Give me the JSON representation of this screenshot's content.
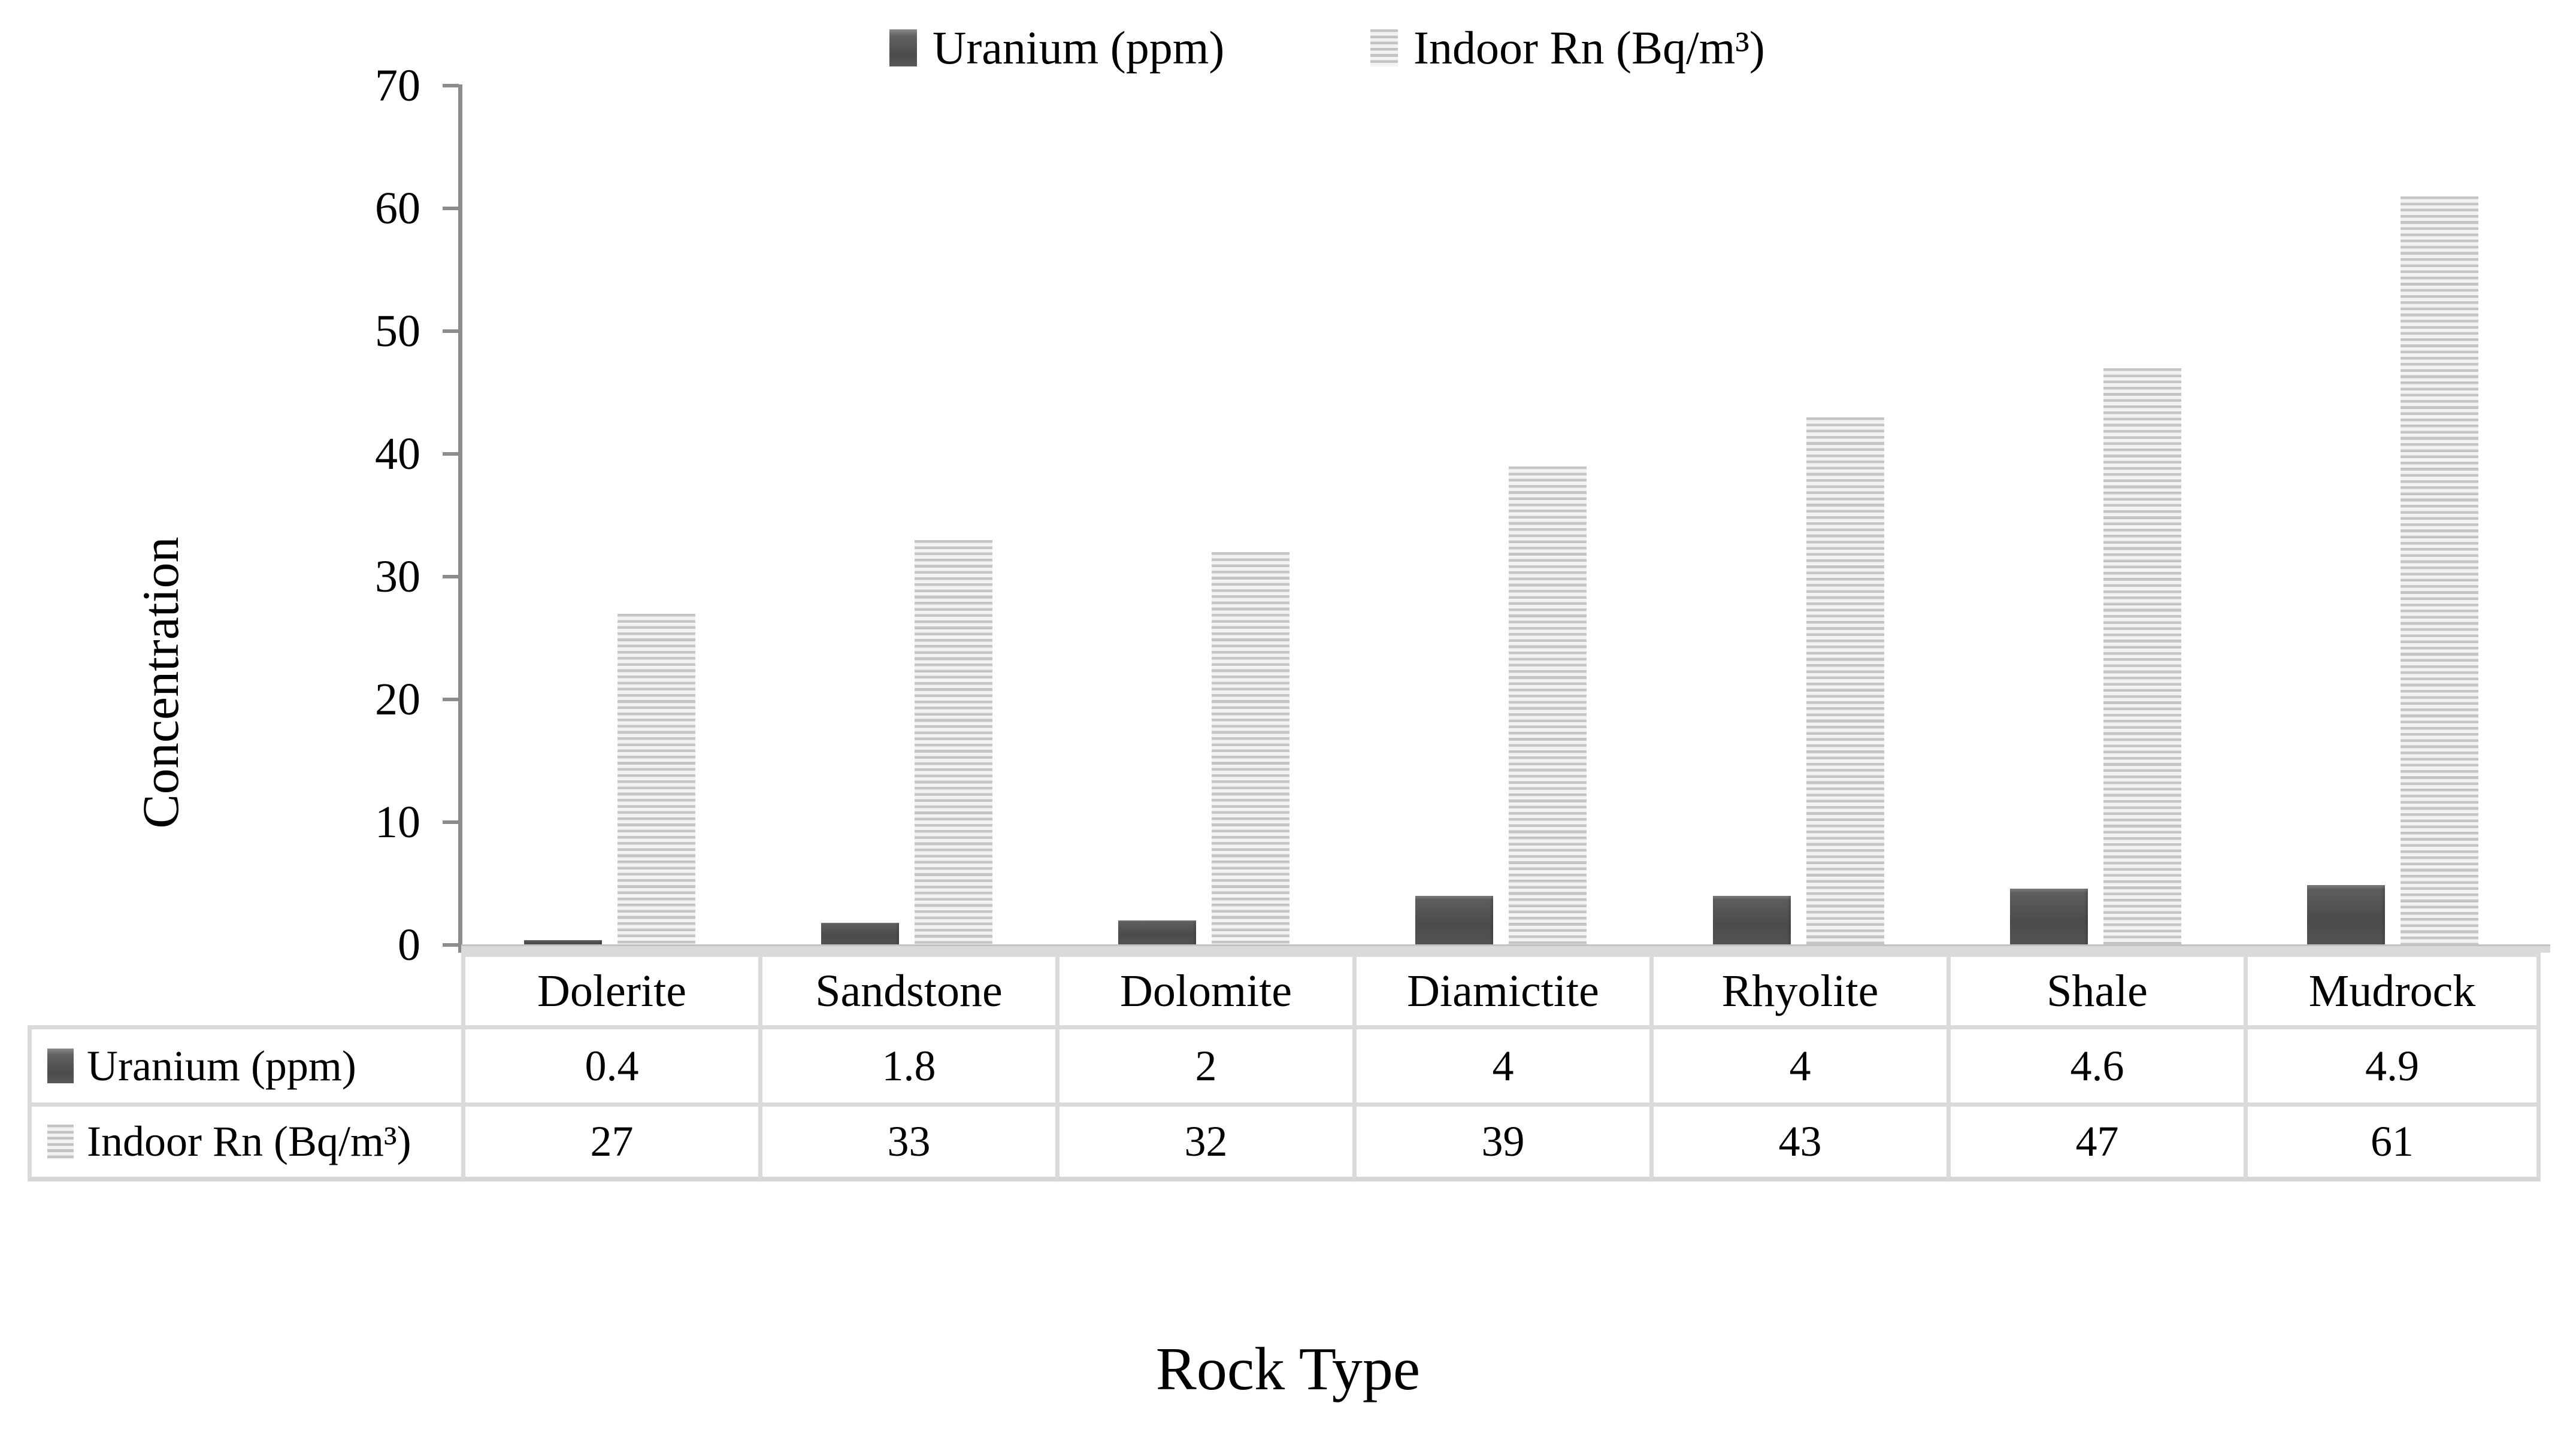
{
  "chart_data": {
    "type": "bar",
    "title": "",
    "categories": [
      "Dolerite",
      "Sandstone",
      "Dolomite",
      "Diamictite",
      "Rhyolite",
      "Shale",
      "Mudrock"
    ],
    "series": [
      {
        "name": "Uranium (ppm)",
        "values": [
          0.4,
          1.8,
          2,
          4,
          4,
          4.6,
          4.9
        ],
        "style": "solid",
        "color": "#4f4f4f"
      },
      {
        "name": "Indoor Rn (Bq/m³)",
        "values": [
          27,
          33,
          32,
          39,
          43,
          47,
          61
        ],
        "style": "striped",
        "stripe_dark": "#c5c5c5",
        "stripe_light": "#f3f3f3"
      }
    ],
    "xlabel": "Rock Type",
    "ylabel": "Concentration",
    "ylim": [
      0,
      70
    ],
    "yticks": [
      0,
      10,
      20,
      30,
      40,
      50,
      60,
      70
    ],
    "legend_position": "top",
    "grid": false,
    "data_table_shown": true
  },
  "colors": {
    "axis": "#8c8c8c",
    "table_border": "#dadada",
    "uranium_bar": "#4f4f4f",
    "radon_stripe_dark": "#c5c5c5",
    "radon_stripe_light": "#f3f3f3",
    "text": "#000000",
    "background": "#ffffff"
  }
}
